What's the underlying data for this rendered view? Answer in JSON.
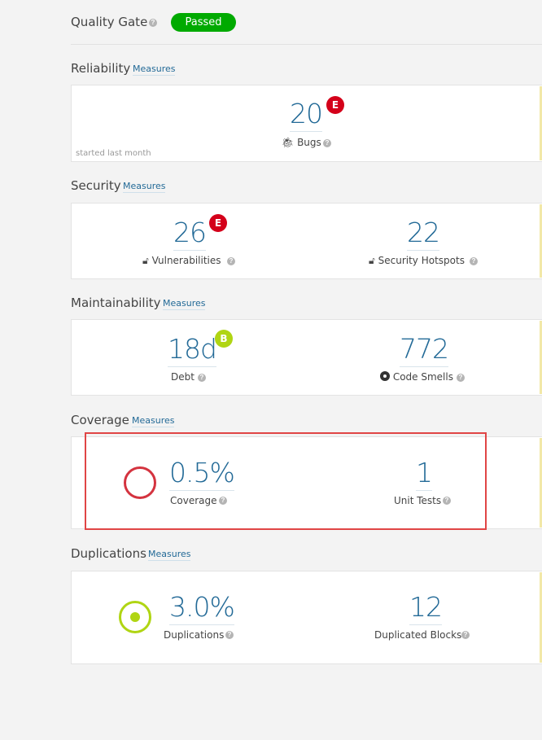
{
  "quality_gate": {
    "title": "Quality Gate",
    "status": "Passed"
  },
  "reliability": {
    "title": "Reliability",
    "measures_link": "Measures",
    "bugs": {
      "value": "20",
      "rating": "E",
      "label": "Bugs"
    },
    "note": "started last month"
  },
  "security": {
    "title": "Security",
    "measures_link": "Measures",
    "vulnerabilities": {
      "value": "26",
      "rating": "E",
      "label": "Vulnerabilities"
    },
    "hotspots": {
      "value": "22",
      "label": "Security Hotspots"
    }
  },
  "maintainability": {
    "title": "Maintainability",
    "measures_link": "Measures",
    "debt": {
      "value": "18d",
      "rating": "B",
      "label": "Debt"
    },
    "code_smells": {
      "value": "772",
      "label": "Code Smells"
    }
  },
  "coverage": {
    "title": "Coverage",
    "measures_link": "Measures",
    "coverage": {
      "value": "0.5%",
      "label": "Coverage"
    },
    "unit_tests": {
      "value": "1",
      "label": "Unit Tests"
    }
  },
  "duplications": {
    "title": "Duplications",
    "measures_link": "Measures",
    "duplications": {
      "value": "3.0%",
      "label": "Duplications"
    },
    "blocks": {
      "value": "12",
      "label": "Duplicated Blocks"
    }
  },
  "colors": {
    "link": "#236a97",
    "passed": "#00aa00",
    "rating_e": "#d4001a",
    "rating_b": "#b0d513",
    "coverage_ring": "#d4333f",
    "duplication_ring": "#b0d513",
    "highlight": "#e04545"
  }
}
